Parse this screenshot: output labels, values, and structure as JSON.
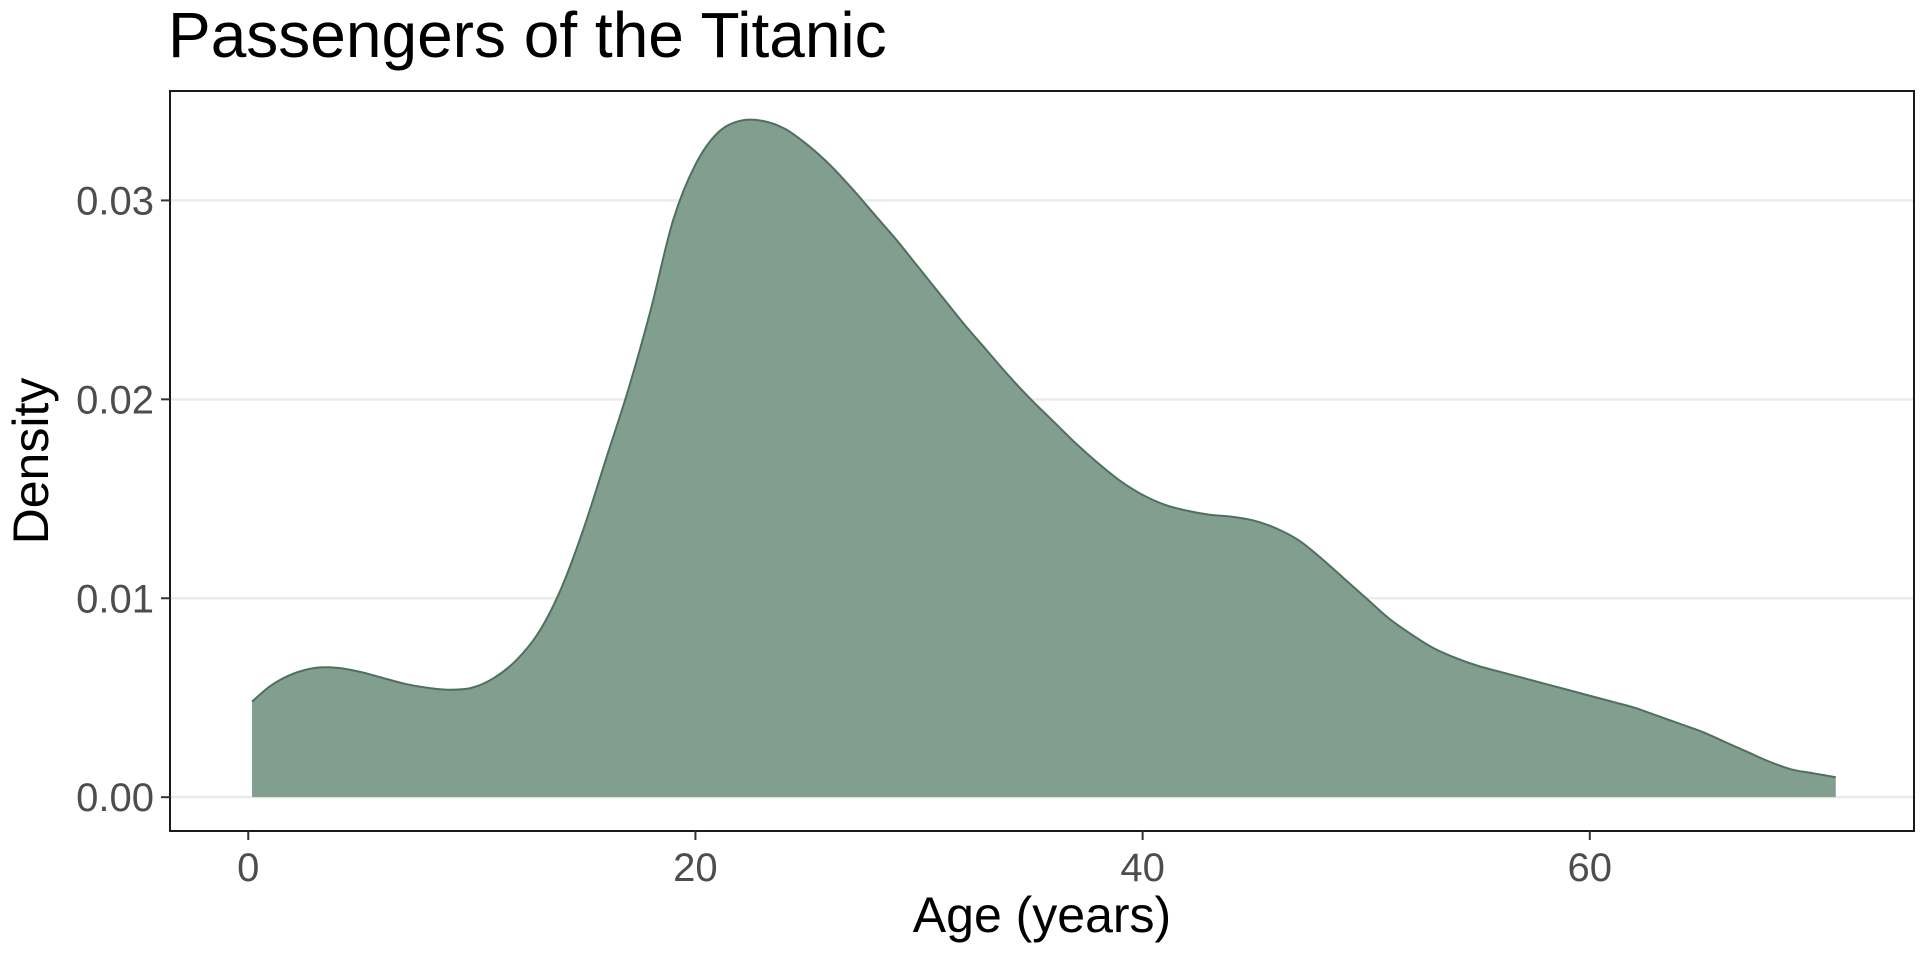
{
  "chart_data": {
    "type": "area",
    "title": "Passengers of the Titanic",
    "xlabel": "Age (years)",
    "ylabel": "Density",
    "xlim": [
      -3.5,
      74.5
    ],
    "ylim": [
      -0.0017,
      0.0355
    ],
    "x_ticks": [
      0,
      20,
      40,
      60
    ],
    "x_tick_labels": [
      "0",
      "20",
      "40",
      "60"
    ],
    "y_ticks": [
      0,
      0.01,
      0.02,
      0.03
    ],
    "y_tick_labels": [
      "0.00",
      "0.01",
      "0.02",
      "0.03"
    ],
    "grid": "horizontal major lines",
    "legend": "none",
    "series": [
      {
        "x": [
          0.17,
          1,
          2,
          3,
          4,
          5,
          6,
          7,
          8,
          9,
          10,
          11,
          12,
          13,
          14,
          15,
          16,
          17,
          18,
          19,
          20,
          21,
          22,
          23,
          24,
          25,
          26,
          27,
          28,
          29,
          30,
          31,
          32,
          33,
          34,
          35,
          36,
          37,
          38,
          39,
          40,
          41,
          42,
          43,
          44,
          45,
          46,
          47,
          48,
          49,
          50,
          51,
          52,
          53,
          54,
          55,
          56,
          57,
          58,
          59,
          60,
          61,
          62,
          63,
          64,
          65,
          66,
          67,
          68,
          69,
          70,
          71
        ],
        "y": [
          0.0048,
          0.0056,
          0.0062,
          0.0065,
          0.0065,
          0.0063,
          0.006,
          0.0057,
          0.0055,
          0.0054,
          0.0055,
          0.006,
          0.0069,
          0.0083,
          0.0105,
          0.0135,
          0.017,
          0.0205,
          0.0245,
          0.029,
          0.0318,
          0.0334,
          0.034,
          0.034,
          0.0336,
          0.0328,
          0.0318,
          0.0306,
          0.0293,
          0.028,
          0.0266,
          0.0252,
          0.0238,
          0.0225,
          0.0212,
          0.02,
          0.0189,
          0.0178,
          0.0168,
          0.0159,
          0.0152,
          0.0147,
          0.0144,
          0.0142,
          0.0141,
          0.0139,
          0.0135,
          0.0129,
          0.012,
          0.011,
          0.01,
          0.009,
          0.0082,
          0.0075,
          0.007,
          0.0066,
          0.0063,
          0.006,
          0.0057,
          0.0054,
          0.0051,
          0.0048,
          0.0045,
          0.0041,
          0.0037,
          0.0033,
          0.0028,
          0.0023,
          0.0018,
          0.0014,
          0.0012,
          0.001
        ]
      }
    ]
  },
  "colors": {
    "fill": "#819e8f",
    "stroke": "#4f6f60",
    "grid": "#ebebeb",
    "panel_border": "#1a1a1a",
    "tick_text": "#4d4d4d",
    "title_text": "#000000"
  }
}
